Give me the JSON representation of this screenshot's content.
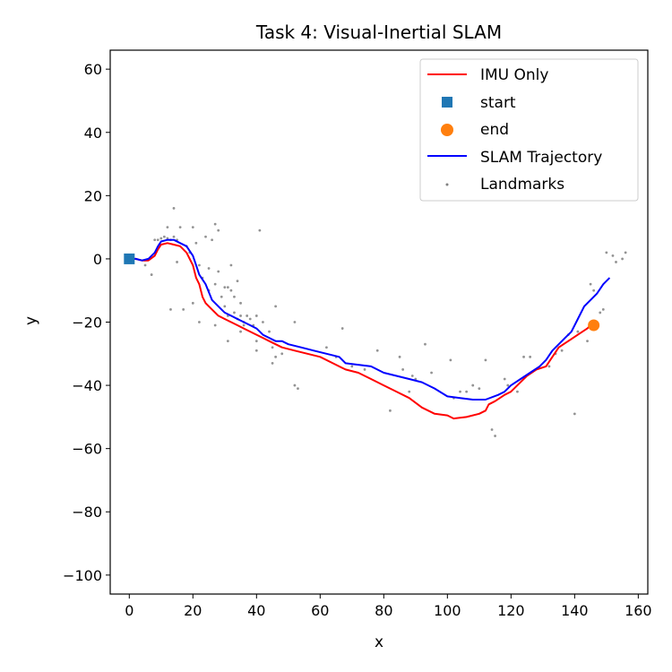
{
  "chart_data": {
    "type": "line",
    "title": "Task 4: Visual-Inertial SLAM",
    "xlabel": "x",
    "ylabel": "y",
    "xlim": [
      -6,
      163
    ],
    "ylim": [
      -106,
      66
    ],
    "xticks": [
      0,
      20,
      40,
      60,
      80,
      100,
      120,
      140,
      160
    ],
    "yticks": [
      60,
      40,
      20,
      0,
      -20,
      -40,
      -60,
      -80,
      -100
    ],
    "xtick_labels": [
      "0",
      "20",
      "40",
      "60",
      "80",
      "100",
      "120",
      "140",
      "160"
    ],
    "ytick_labels": [
      "60",
      "40",
      "20",
      "0",
      "−20",
      "−40",
      "−60",
      "−80",
      "−100"
    ],
    "grid": false,
    "legend_position": "top-right",
    "legend": [
      "IMU Only",
      "start",
      "end",
      "SLAM Trajectory",
      "Landmarks"
    ],
    "series": [
      {
        "name": "IMU Only",
        "kind": "line",
        "color": "#ff0000",
        "points": [
          [
            0,
            0
          ],
          [
            2,
            0
          ],
          [
            4,
            -0.5
          ],
          [
            6,
            -0.5
          ],
          [
            8,
            1
          ],
          [
            9,
            3
          ],
          [
            10,
            4.5
          ],
          [
            12,
            5
          ],
          [
            14,
            4.5
          ],
          [
            16,
            4
          ],
          [
            18,
            2
          ],
          [
            20,
            -2
          ],
          [
            21,
            -6
          ],
          [
            22,
            -8
          ],
          [
            23,
            -12
          ],
          [
            24,
            -14
          ],
          [
            26,
            -16
          ],
          [
            28,
            -18
          ],
          [
            30,
            -19
          ],
          [
            32,
            -20
          ],
          [
            34,
            -21
          ],
          [
            36,
            -22
          ],
          [
            38,
            -23
          ],
          [
            40,
            -24
          ],
          [
            42,
            -25
          ],
          [
            44,
            -26
          ],
          [
            46,
            -27
          ],
          [
            48,
            -28
          ],
          [
            52,
            -29
          ],
          [
            56,
            -30
          ],
          [
            60,
            -31
          ],
          [
            64,
            -33
          ],
          [
            68,
            -35
          ],
          [
            72,
            -36
          ],
          [
            76,
            -38
          ],
          [
            80,
            -40
          ],
          [
            84,
            -42
          ],
          [
            88,
            -44
          ],
          [
            92,
            -47
          ],
          [
            96,
            -49
          ],
          [
            100,
            -49.5
          ],
          [
            102,
            -50.5
          ],
          [
            106,
            -50
          ],
          [
            110,
            -49
          ],
          [
            112,
            -48
          ],
          [
            113,
            -46
          ],
          [
            115,
            -45
          ],
          [
            118,
            -43
          ],
          [
            120,
            -42
          ],
          [
            122,
            -40
          ],
          [
            125,
            -37
          ],
          [
            128,
            -35
          ],
          [
            131,
            -34
          ],
          [
            133,
            -31
          ],
          [
            135,
            -28
          ],
          [
            138,
            -26
          ],
          [
            141,
            -24
          ],
          [
            144,
            -22
          ],
          [
            146,
            -20
          ]
        ]
      },
      {
        "name": "start",
        "kind": "marker",
        "marker": "square",
        "color": "#1f77b4",
        "points": [
          [
            0,
            0
          ]
        ]
      },
      {
        "name": "end",
        "kind": "marker",
        "marker": "circle",
        "color": "#ff7f0e",
        "points": [
          [
            146,
            -21
          ]
        ]
      },
      {
        "name": "SLAM Trajectory",
        "kind": "line",
        "color": "#0000ff",
        "points": [
          [
            0,
            0
          ],
          [
            2,
            0
          ],
          [
            4,
            -0.5
          ],
          [
            6,
            0
          ],
          [
            8,
            2
          ],
          [
            9,
            4
          ],
          [
            10,
            5.5
          ],
          [
            12,
            6
          ],
          [
            14,
            6
          ],
          [
            16,
            5
          ],
          [
            18,
            4
          ],
          [
            20,
            1
          ],
          [
            21,
            -2
          ],
          [
            22,
            -5
          ],
          [
            24,
            -8
          ],
          [
            26,
            -13
          ],
          [
            28,
            -15
          ],
          [
            30,
            -17
          ],
          [
            32,
            -18
          ],
          [
            34,
            -19
          ],
          [
            36,
            -20
          ],
          [
            38,
            -21
          ],
          [
            40,
            -22
          ],
          [
            42,
            -24
          ],
          [
            44,
            -25
          ],
          [
            46,
            -26
          ],
          [
            48,
            -26
          ],
          [
            50,
            -27
          ],
          [
            54,
            -28
          ],
          [
            58,
            -29
          ],
          [
            62,
            -30
          ],
          [
            66,
            -31
          ],
          [
            68,
            -33
          ],
          [
            72,
            -33.5
          ],
          [
            76,
            -34
          ],
          [
            80,
            -36
          ],
          [
            84,
            -37
          ],
          [
            88,
            -38
          ],
          [
            92,
            -39
          ],
          [
            96,
            -41
          ],
          [
            100,
            -43.5
          ],
          [
            104,
            -44
          ],
          [
            108,
            -44.5
          ],
          [
            112,
            -44.5
          ],
          [
            116,
            -43
          ],
          [
            118,
            -42
          ],
          [
            120,
            -40
          ],
          [
            123,
            -38
          ],
          [
            126,
            -36
          ],
          [
            129,
            -34
          ],
          [
            131,
            -32
          ],
          [
            133,
            -29
          ],
          [
            135,
            -27
          ],
          [
            137,
            -25
          ],
          [
            139,
            -23
          ],
          [
            141,
            -19
          ],
          [
            143,
            -15
          ],
          [
            145,
            -13
          ],
          [
            147,
            -11
          ],
          [
            149,
            -8
          ],
          [
            151,
            -6
          ]
        ]
      },
      {
        "name": "Landmarks",
        "kind": "scatter",
        "color": "#808080",
        "points": [
          [
            8,
            6
          ],
          [
            9,
            6
          ],
          [
            10,
            6.5
          ],
          [
            11,
            7
          ],
          [
            12,
            6.5
          ],
          [
            13,
            6
          ],
          [
            14,
            7
          ],
          [
            15,
            6
          ],
          [
            16,
            10
          ],
          [
            14,
            16
          ],
          [
            12,
            10
          ],
          [
            18,
            4
          ],
          [
            19,
            2
          ],
          [
            20,
            10
          ],
          [
            21,
            5
          ],
          [
            22,
            -2
          ],
          [
            23,
            -6
          ],
          [
            24,
            7
          ],
          [
            25,
            -3
          ],
          [
            25,
            -10
          ],
          [
            26,
            6
          ],
          [
            27,
            -8
          ],
          [
            27,
            11
          ],
          [
            28,
            -4
          ],
          [
            28,
            9
          ],
          [
            29,
            -12
          ],
          [
            30,
            -15
          ],
          [
            30,
            -9
          ],
          [
            31,
            -9
          ],
          [
            31,
            -18
          ],
          [
            32,
            -2
          ],
          [
            32,
            -10
          ],
          [
            33,
            -12
          ],
          [
            33,
            -17
          ],
          [
            34,
            -7
          ],
          [
            34,
            -19
          ],
          [
            35,
            -14
          ],
          [
            35,
            -18
          ],
          [
            36,
            -20
          ],
          [
            36,
            -21
          ],
          [
            37,
            -18
          ],
          [
            38,
            -19
          ],
          [
            39,
            -21
          ],
          [
            40,
            -18
          ],
          [
            40,
            -26
          ],
          [
            41,
            9
          ],
          [
            42,
            -20
          ],
          [
            44,
            -23
          ],
          [
            45,
            -28
          ],
          [
            46,
            -15
          ],
          [
            46,
            -31
          ],
          [
            52,
            -20
          ],
          [
            52,
            -40
          ],
          [
            53,
            -41
          ],
          [
            62,
            -28
          ],
          [
            65,
            -31
          ],
          [
            67,
            -22
          ],
          [
            70,
            -34
          ],
          [
            74,
            -35
          ],
          [
            78,
            -29
          ],
          [
            82,
            -48
          ],
          [
            85,
            -31
          ],
          [
            86,
            -35
          ],
          [
            88,
            -42
          ],
          [
            89,
            -37
          ],
          [
            90,
            -38
          ],
          [
            93,
            -27
          ],
          [
            95,
            -36
          ],
          [
            101,
            -32
          ],
          [
            102,
            -44
          ],
          [
            104,
            -42
          ],
          [
            106,
            -42
          ],
          [
            108,
            -40
          ],
          [
            110,
            -41
          ],
          [
            112,
            -32
          ],
          [
            114,
            -54
          ],
          [
            115,
            -56
          ],
          [
            118,
            -38
          ],
          [
            119,
            -40
          ],
          [
            122,
            -42
          ],
          [
            124,
            -31
          ],
          [
            126,
            -31
          ],
          [
            132,
            -34
          ],
          [
            134,
            -30
          ],
          [
            136,
            -29
          ],
          [
            138,
            -24
          ],
          [
            140,
            -49
          ],
          [
            141,
            -23
          ],
          [
            144,
            -26
          ],
          [
            145,
            -8
          ],
          [
            146,
            -10
          ],
          [
            147,
            -20
          ],
          [
            148,
            -17
          ],
          [
            149,
            -16
          ],
          [
            150,
            2
          ],
          [
            152,
            1
          ],
          [
            153,
            -1
          ],
          [
            155,
            0
          ],
          [
            156,
            2
          ],
          [
            13,
            -16
          ],
          [
            15,
            -1
          ],
          [
            7,
            -5
          ],
          [
            5,
            -2
          ],
          [
            17,
            -16
          ],
          [
            20,
            -14
          ],
          [
            22,
            -20
          ],
          [
            27,
            -21
          ],
          [
            31,
            -26
          ],
          [
            35,
            -23
          ],
          [
            40,
            -29
          ],
          [
            45,
            -33
          ],
          [
            48,
            -30
          ]
        ]
      }
    ]
  }
}
